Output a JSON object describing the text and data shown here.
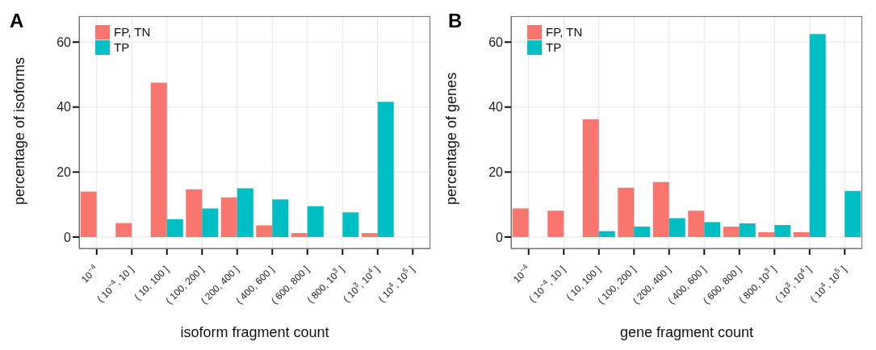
{
  "chart_data": [
    {
      "type": "bar",
      "title": "A",
      "xlabel": "isoform fragment count",
      "ylabel": "percentage of isoforms",
      "categories": [
        "10$^{−4}$",
        "( 10$^{−4}$, 10 ]",
        "( 10, 100 ]",
        "( 100, 200 ]",
        "( 200, 400 ]",
        "( 400, 600 ]",
        "( 600, 800 ]",
        "( 800, 10$^{3}$ ]",
        "( 10$^{3}$, 10$^{4}$ ]",
        "( 10$^{4}$, 10$^{5}$ ]"
      ],
      "series": [
        {
          "name": "FP, TN",
          "color": "#f8766d",
          "values": [
            14,
            4.3,
            47.5,
            14.7,
            12.2,
            3.6,
            1.2,
            0,
            1.2,
            0
          ]
        },
        {
          "name": "TP",
          "color": "#00bfc4",
          "values": [
            0,
            0,
            5.5,
            8.8,
            15,
            11.6,
            9.5,
            7.6,
            41.6,
            0
          ]
        }
      ],
      "ylim": [
        -3.5,
        68
      ],
      "yticks": [
        0,
        20,
        40,
        60
      ],
      "grid": true,
      "legend": "top left"
    },
    {
      "type": "bar",
      "title": "B",
      "xlabel": "gene fragment count",
      "ylabel": "percentage of genes",
      "categories": [
        "10$^{−4}$",
        "( 10$^{−4}$, 10 ]",
        "( 10, 100 ]",
        "( 100, 200 ]",
        "( 200, 400 ]",
        "( 400, 600 ]",
        "( 600, 800 ]",
        "( 800, 10$^{3}$ ]",
        "( 10$^{3}$, 10$^{4}$ ]",
        "( 10$^{4}$, 10$^{5}$ ]"
      ],
      "series": [
        {
          "name": "FP, TN",
          "color": "#f8766d",
          "values": [
            8.8,
            8.1,
            36.2,
            15.2,
            16.9,
            8.1,
            3.2,
            1.5,
            1.5,
            0
          ]
        },
        {
          "name": "TP",
          "color": "#00bfc4",
          "values": [
            0,
            0,
            1.8,
            3.2,
            5.8,
            4.6,
            4.2,
            3.7,
            62.5,
            14.2
          ]
        }
      ],
      "ylim": [
        -3.5,
        68
      ],
      "yticks": [
        0,
        20,
        40,
        60
      ],
      "grid": true,
      "legend": "top left"
    }
  ]
}
